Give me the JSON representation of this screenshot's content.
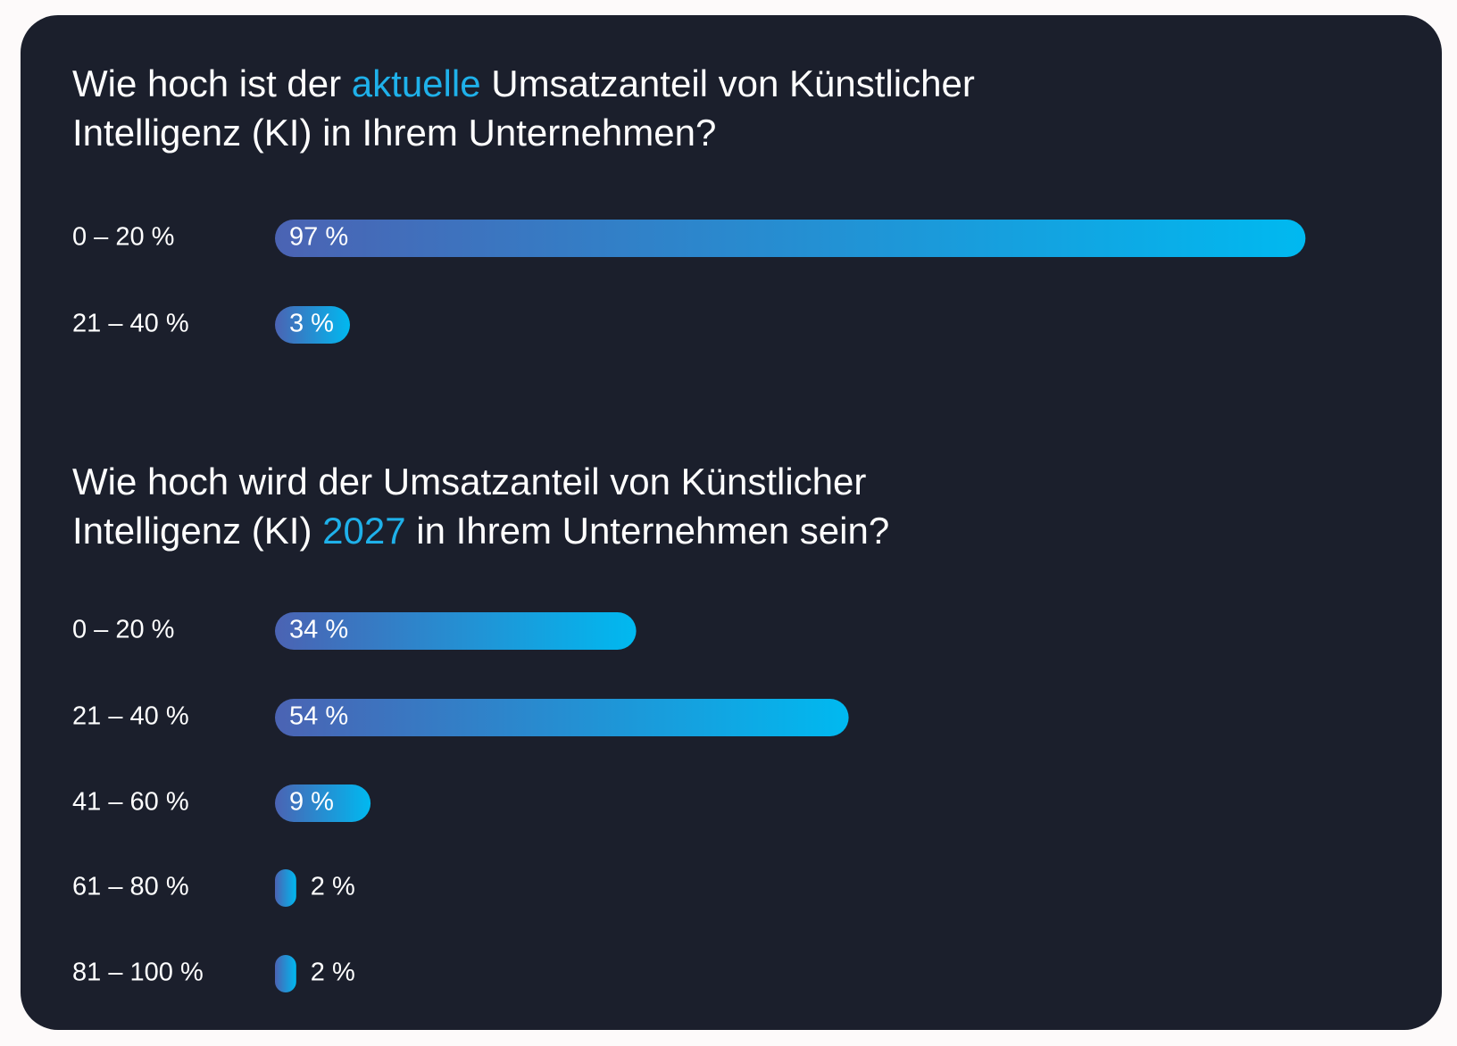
{
  "chart_data": [
    {
      "type": "bar",
      "title_lines": [
        [
          {
            "text": "Wie hoch ist der "
          },
          {
            "text": "aktuelle",
            "color": "#1fb1ea"
          },
          {
            "text": " Umsatzanteil von Künstlicher"
          }
        ],
        [
          {
            "text": "Intelligenz (KI) in Ihrem Unternehmen?"
          }
        ]
      ],
      "categories": [
        "0 – 20 %",
        "21 – 40 %"
      ],
      "values": [
        97,
        3
      ],
      "value_labels": [
        "97 %",
        "3 %"
      ],
      "xlim": [
        0,
        100
      ],
      "colors": [
        "#4b63b3",
        "#00b9f0"
      ]
    },
    {
      "type": "bar",
      "title_lines": [
        [
          {
            "text": "Wie hoch wird der Umsatzanteil von Künstlicher"
          }
        ],
        [
          {
            "text": "Intelligenz (KI) "
          },
          {
            "text": "2027",
            "color": "#1fb1ea"
          },
          {
            "text": " in Ihrem Unternehmen sein?"
          }
        ]
      ],
      "categories": [
        "0 – 20 %",
        "21 – 40 %",
        "41 – 60 %",
        "61 – 80 %",
        "81 – 100 %"
      ],
      "values": [
        34,
        54,
        9,
        2,
        2
      ],
      "value_labels": [
        "34 %",
        "54 %",
        "9 %",
        "2 %",
        "2 %"
      ],
      "xlim": [
        0,
        100
      ],
      "colors": [
        "#4b63b3",
        "#00b9f0"
      ]
    }
  ]
}
